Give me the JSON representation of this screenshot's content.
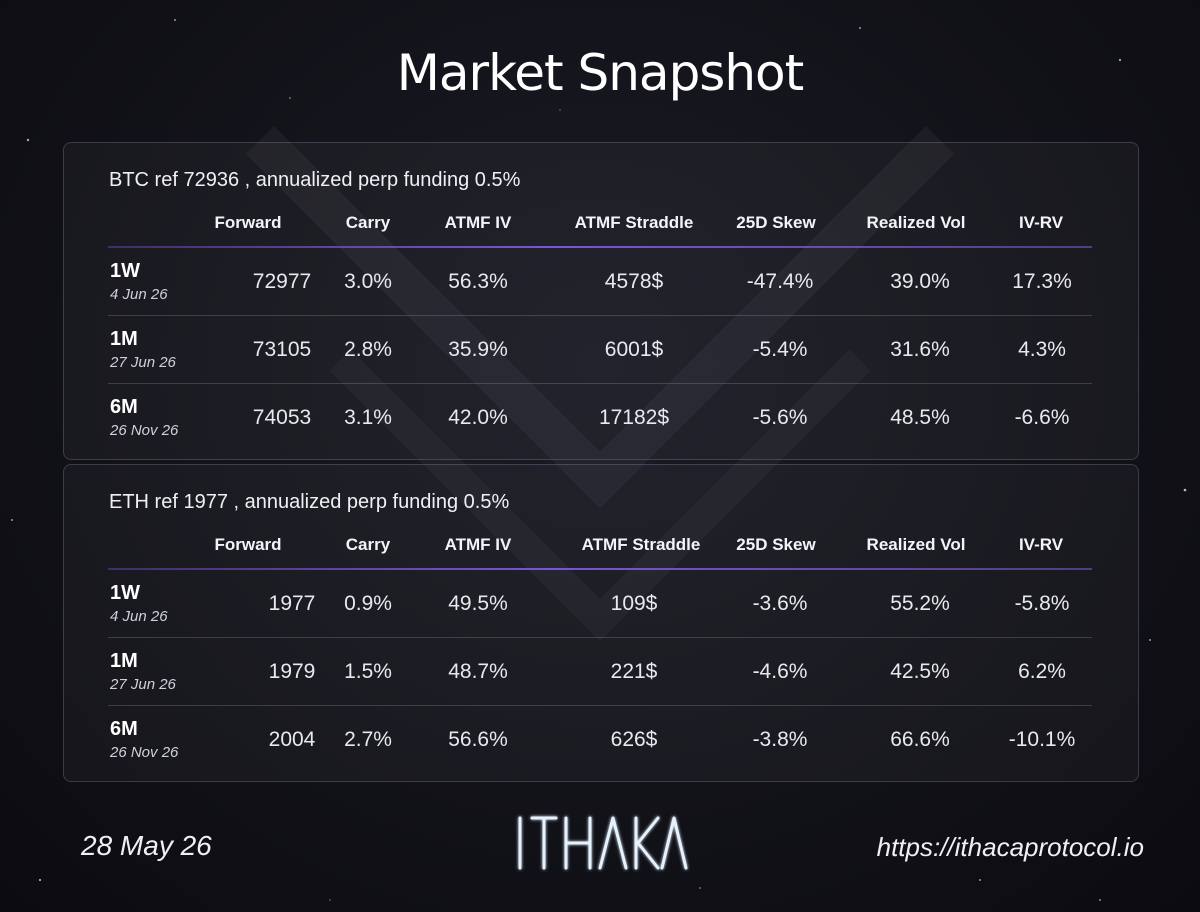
{
  "title": "Market Snapshot",
  "columns": [
    "Forward",
    "Carry",
    "ATMF IV",
    "ATMF Straddle",
    "25D Skew",
    "Realized Vol",
    "IV-RV"
  ],
  "btc": {
    "heading": "BTC ref 72936 , annualized perp funding 0.5%",
    "rows": [
      {
        "tenor": "1W",
        "date": "4 Jun 26",
        "forward": "72977",
        "carry": "3.0%",
        "atmf_iv": "56.3%",
        "straddle": "4578$",
        "skew": "-47.4%",
        "rv": "39.0%",
        "iv_rv": "17.3%"
      },
      {
        "tenor": "1M",
        "date": "27 Jun 26",
        "forward": "73105",
        "carry": "2.8%",
        "atmf_iv": "35.9%",
        "straddle": "6001$",
        "skew": "-5.4%",
        "rv": "31.6%",
        "iv_rv": "4.3%"
      },
      {
        "tenor": "6M",
        "date": "26 Nov 26",
        "forward": "74053",
        "carry": "3.1%",
        "atmf_iv": "42.0%",
        "straddle": "17182$",
        "skew": "-5.6%",
        "rv": "48.5%",
        "iv_rv": "-6.6%"
      }
    ]
  },
  "eth": {
    "heading": "ETH ref 1977 , annualized perp funding 0.5%",
    "rows": [
      {
        "tenor": "1W",
        "date": "4 Jun 26",
        "forward": "1977",
        "carry": "0.9%",
        "atmf_iv": "49.5%",
        "straddle": "109$",
        "skew": "-3.6%",
        "rv": "55.2%",
        "iv_rv": "-5.8%"
      },
      {
        "tenor": "1M",
        "date": "27 Jun 26",
        "forward": "1979",
        "carry": "1.5%",
        "atmf_iv": "48.7%",
        "straddle": "221$",
        "skew": "-4.6%",
        "rv": "42.5%",
        "iv_rv": "6.2%"
      },
      {
        "tenor": "6M",
        "date": "26 Nov 26",
        "forward": "2004",
        "carry": "2.7%",
        "atmf_iv": "56.6%",
        "straddle": "626$",
        "skew": "-3.8%",
        "rv": "66.6%",
        "iv_rv": "-10.1%"
      }
    ]
  },
  "footer": {
    "date": "28 May 26",
    "logo_text": "ITHAKA",
    "url": "https://ithacaprotocol.io"
  },
  "colors": {
    "accent_line": "#7b54d8",
    "background": "#121219"
  }
}
